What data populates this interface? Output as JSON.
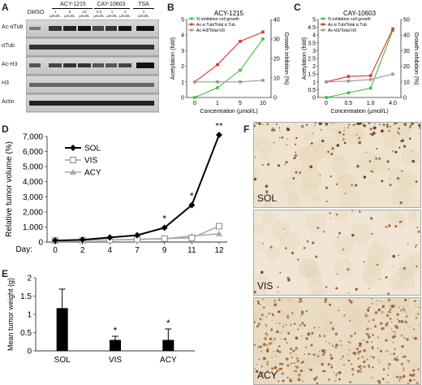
{
  "panels": {
    "A": "A",
    "B": "B",
    "C": "C",
    "D": "D",
    "E": "E",
    "F": "F"
  },
  "blot": {
    "dmso": "DMSO",
    "groups": [
      "ACY-1215",
      "CAY-10603",
      "TSA"
    ],
    "conc": [
      "1",
      "5",
      "10",
      "0.5",
      "1",
      "4",
      "1"
    ],
    "unit": "µmol/L",
    "rows": [
      "Ac-αTub",
      "αTub",
      "Ac-H3",
      "H3",
      "Actin"
    ]
  },
  "chart_data": [
    {
      "type": "line",
      "title": "ACY-1215",
      "xlabel": "Concentration (µmol/L)",
      "ylabel": "Acetylation (fold)",
      "y2label": "Growth inhibition (%)",
      "categories": [
        "0",
        "1",
        "5",
        "10"
      ],
      "ylim": [
        0,
        5
      ],
      "yticks": [
        0,
        1,
        2,
        3,
        4,
        5
      ],
      "y2lim": [
        0,
        40
      ],
      "y2ticks": [
        0,
        10,
        20,
        30,
        40
      ],
      "series": [
        {
          "name": "% inhibition cell growth",
          "axis": "right",
          "color": "#3fbf3f",
          "values": [
            0,
            5,
            14,
            30
          ]
        },
        {
          "name": "Ac-α Tub/Total α Tub",
          "axis": "left",
          "color": "#e03030",
          "values": [
            1,
            2.1,
            3.6,
            4.2
          ]
        },
        {
          "name": "Ac-H3/Total H3",
          "axis": "left",
          "color": "#999999",
          "values": [
            1,
            1,
            1,
            1.1
          ]
        }
      ]
    },
    {
      "type": "line",
      "title": "CAY-10603",
      "xlabel": "Concentration (µmol/L)",
      "ylabel": "Acetylation (fold)",
      "y2label": "Growth inhibition (%)",
      "categories": [
        "0",
        "0.5",
        "1.0",
        "4.0"
      ],
      "ylim": [
        0,
        5
      ],
      "yticks": [
        0,
        0.5,
        1,
        1.5,
        2,
        2.5,
        3,
        3.5,
        4,
        4.5,
        5
      ],
      "y2lim": [
        0,
        50
      ],
      "y2ticks": [
        0,
        10,
        20,
        30,
        40,
        50
      ],
      "series": [
        {
          "name": "% inhibition cell growth",
          "axis": "right",
          "color": "#3fbf3f",
          "values": [
            0,
            3,
            6,
            43
          ]
        },
        {
          "name": "Ac-α Tub/Total α Tub",
          "axis": "left",
          "color": "#e03030",
          "values": [
            1,
            1.35,
            1.4,
            4.4
          ]
        },
        {
          "name": "Ac-H3/Total H3",
          "axis": "left",
          "color": "#999999",
          "values": [
            1,
            1.05,
            1.15,
            1.5
          ]
        }
      ]
    },
    {
      "type": "line",
      "xlabel": "Day:",
      "ylabel": "Relative tumor volume (%)",
      "categories": [
        "0",
        "2",
        "4",
        "7",
        "9",
        "11",
        "12"
      ],
      "ylim": [
        0,
        7000
      ],
      "yticks": [
        "0",
        "1,000",
        "2,000",
        "3,000",
        "4,000",
        "5,000",
        "6,000",
        "7,000"
      ],
      "series": [
        {
          "name": "SOL",
          "marker": "diamond",
          "color": "#000000",
          "values": [
            100,
            150,
            300,
            450,
            950,
            2450,
            7100
          ]
        },
        {
          "name": "VIS",
          "marker": "square",
          "color": "#aaaaaa",
          "values": [
            100,
            120,
            140,
            180,
            230,
            280,
            1050
          ]
        },
        {
          "name": "ACY",
          "marker": "triangle",
          "color": "#aaaaaa",
          "values": [
            100,
            110,
            140,
            170,
            220,
            400,
            550
          ]
        }
      ],
      "annotations": [
        {
          "category": "9",
          "text": "*"
        },
        {
          "category": "11",
          "text": "*"
        },
        {
          "category": "12",
          "text": "**"
        }
      ]
    },
    {
      "type": "bar",
      "ylabel": "Mean tumor weight (g)",
      "categories": [
        "SOL",
        "VIS",
        "ACY"
      ],
      "values": [
        1.17,
        0.3,
        0.3
      ],
      "errors": [
        0.52,
        0.1,
        0.3
      ],
      "ylim": [
        0,
        2
      ],
      "yticks": [
        "0",
        "0.5",
        "1",
        "1.5",
        "2"
      ],
      "annotations": [
        "",
        "*",
        "*"
      ]
    }
  ],
  "ihc": {
    "labels": [
      "SOL",
      "VIS",
      "ACY"
    ]
  }
}
